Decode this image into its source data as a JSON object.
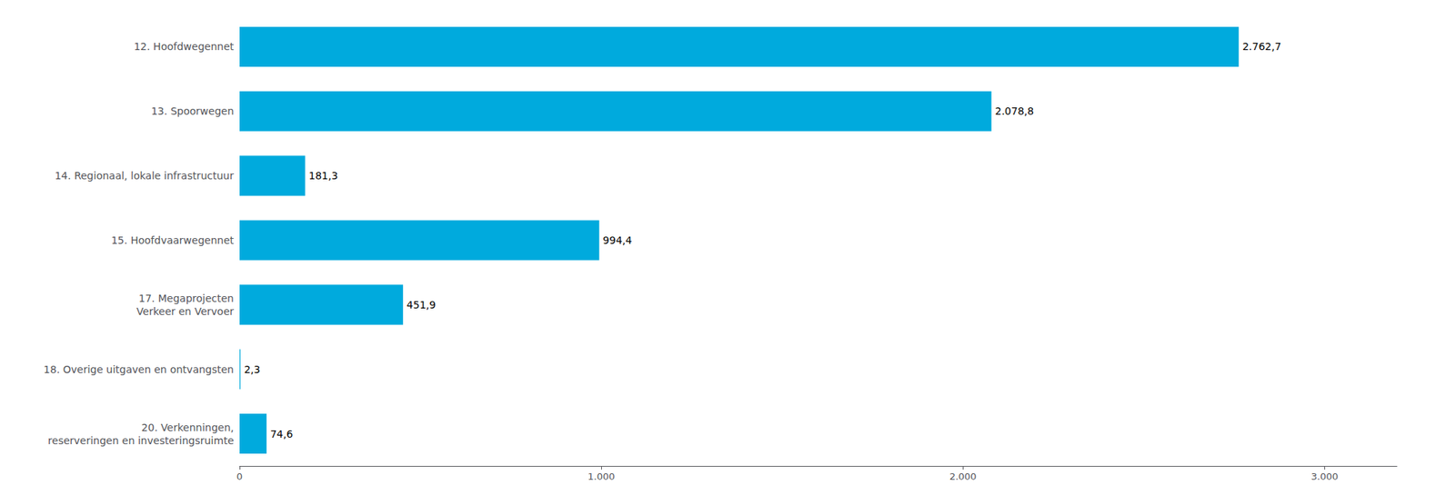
{
  "chart_data": {
    "type": "bar",
    "orientation": "horizontal",
    "categories": [
      "12. Hoofdwegennet",
      "13. Spoorwegen",
      "14. Regionaal, lokale infrastructuur",
      "15. Hoofdvaarwegennet",
      "17. Megaprojecten\nVerkeer en Vervoer",
      "18. Overige uitgaven en ontvangsten",
      "20. Verkenningen,\nreserveringen en investeringsruimte"
    ],
    "values": [
      2762.7,
      2078.8,
      181.3,
      994.4,
      451.9,
      2.3,
      74.6
    ],
    "value_labels": [
      "2.762,7",
      "2.078,8",
      "181,3",
      "994,4",
      "451,9",
      "2,3",
      "74,6"
    ],
    "data_labels": true,
    "color": "#00aadd",
    "xlim": [
      0,
      3200
    ],
    "xticks": [
      0,
      {
        "value": 1000,
        "label": "1.000"
      },
      {
        "value": 2000,
        "label": "2.000"
      },
      {
        "value": 3000,
        "label": "3.000"
      }
    ],
    "grid": false
  }
}
